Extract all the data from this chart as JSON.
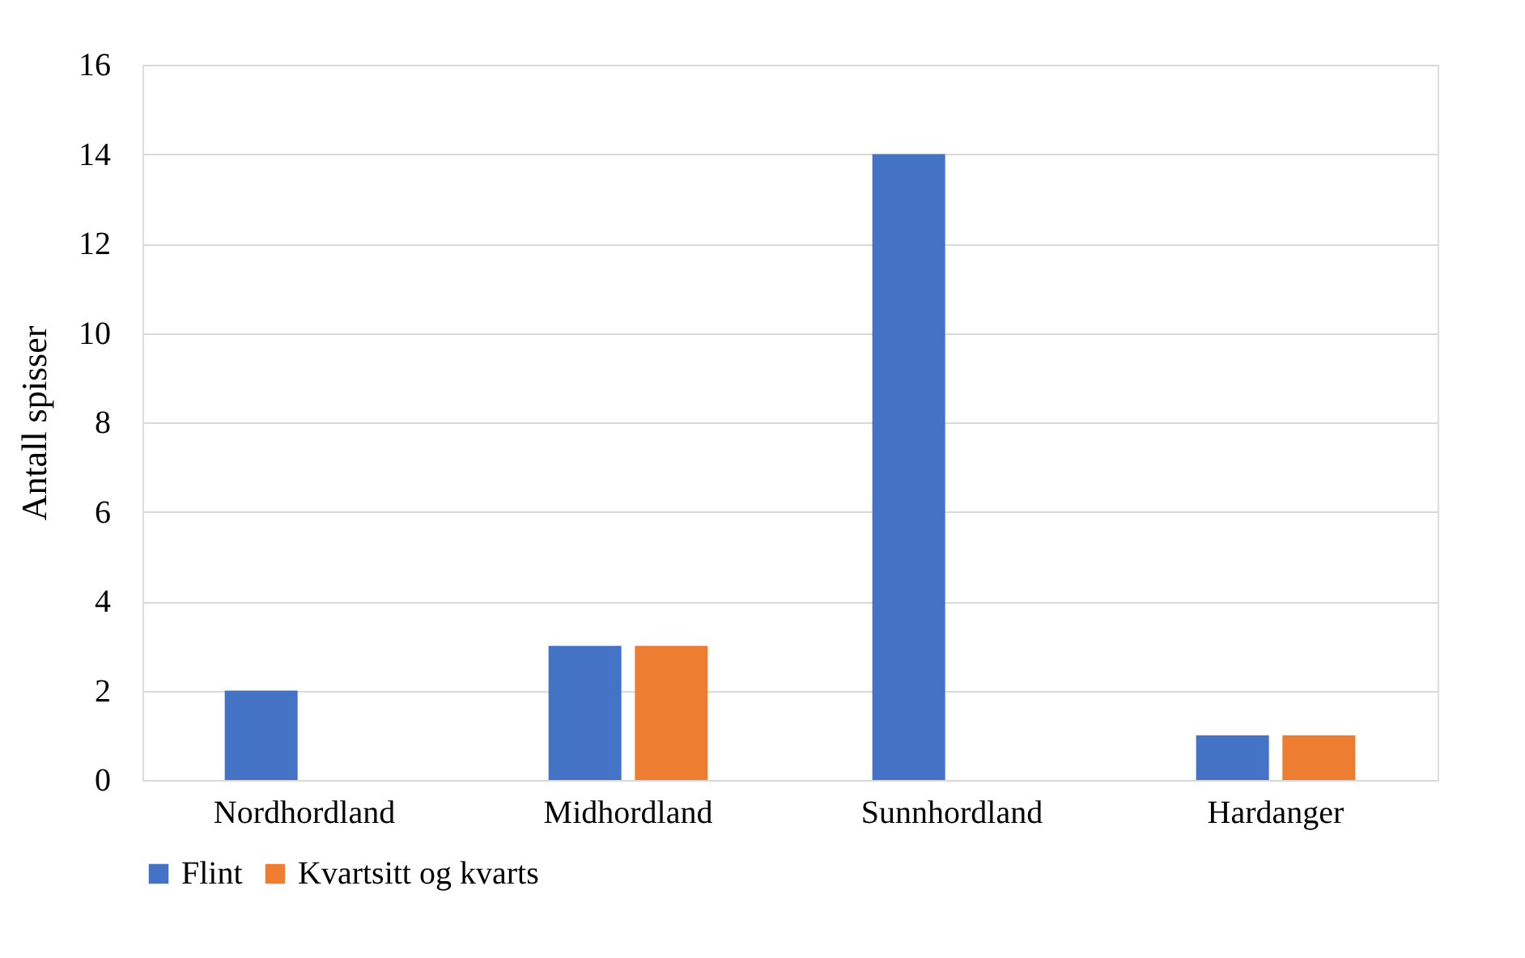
{
  "chart_data": {
    "type": "bar",
    "ylabel": "Antall spisser",
    "categories": [
      "Nordhordland",
      "Midhordland",
      "Sunnhordland",
      "Hardanger"
    ],
    "series": [
      {
        "name": "Flint",
        "color": "#4472c4",
        "values": [
          2,
          3,
          14,
          1
        ]
      },
      {
        "name": "Kvartsitt og kvarts",
        "color": "#ed7d31",
        "values": [
          null,
          3,
          null,
          1
        ]
      }
    ],
    "ylim": [
      0,
      16
    ],
    "yticks": [
      0,
      2,
      4,
      6,
      8,
      10,
      12,
      14,
      16
    ],
    "grid": "y",
    "legend": "bottom"
  }
}
